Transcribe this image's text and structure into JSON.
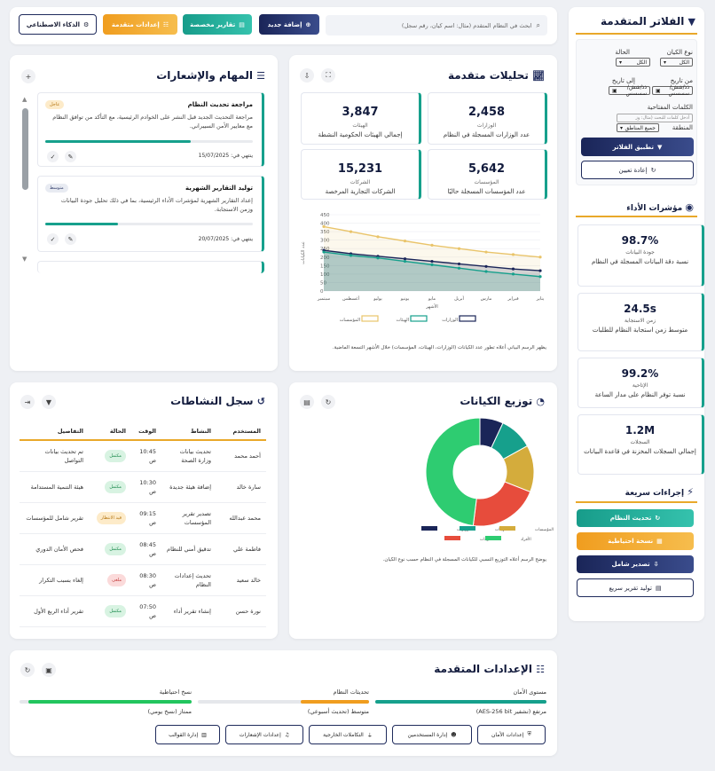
{
  "toolbar": {
    "ai_label": "الذكاء الاصطناعي",
    "advanced_settings_label": "إعدادات متقدمة",
    "custom_reports_label": "تقارير مخصصة",
    "add_new_label": "إضافة جديد",
    "search_placeholder": "ابحث في النظام المتقدم (مثال: اسم كيان، رقم سجل)"
  },
  "filters": {
    "title": "الفلاتر المتقدمة",
    "entity_type_label": "نوع الكيان",
    "entity_type_value": "الكل",
    "status_label": "الحالة",
    "status_value": "الكل",
    "from_date_label": "من تاريخ",
    "to_date_label": "إلى تاريخ",
    "date_placeholder": "ذذ/شش/سسسس",
    "keywords_label": "الكلمات المفتاحية",
    "keywords_placeholder": "أدخل كلمات للبحث (مثال: وز",
    "region_label": "المنطقة",
    "region_value": "جميع المناطق",
    "apply_label": "تطبيق الفلاتر",
    "reset_label": "إعادة تعيين"
  },
  "performance": {
    "title": "مؤشرات الأداء",
    "items": [
      {
        "value": "98.7%",
        "label": "جودة البيانات",
        "desc": "نسبة دقة البيانات المسجلة في النظام"
      },
      {
        "value": "24.5s",
        "label": "زمن الاستجابة",
        "desc": "متوسط زمن استجابة النظام للطلبات"
      },
      {
        "value": "99.2%",
        "label": "الإتاحية",
        "desc": "نسبة توفر النظام على مدار الساعة"
      },
      {
        "value": "1.2M",
        "label": "السجلات",
        "desc": "إجمالي السجلات المخزنة في قاعدة البيانات"
      }
    ]
  },
  "quick_actions": {
    "title": "إجراءات سريعة",
    "update_system": "تحديث النظام",
    "backup": "نسخة احتياطية",
    "export_all": "تصدير شامل",
    "quick_report": "توليد تقرير سريع"
  },
  "analytics": {
    "title": "تحليلات متقدمة",
    "kpis": [
      {
        "value": "2,458",
        "label": "الوزارات",
        "desc": "عدد الوزارات المسجلة في النظام"
      },
      {
        "value": "3,847",
        "label": "الهيئات",
        "desc": "إجمالي الهيئات الحكومية النشطة"
      },
      {
        "value": "5,642",
        "label": "المؤسسات",
        "desc": "عدد المؤسسات المسجلة حاليًا"
      },
      {
        "value": "15,231",
        "label": "الشركات",
        "desc": "الشركات التجارية المرخصة"
      }
    ],
    "caption": "يظهر الرسم البياني أعلاه تطور عدد الكيانات (الوزارات، الهيئات، المؤسسات) خلال الأشهر التسعة الماضية."
  },
  "tasks": {
    "title": "المهام والإشعارات",
    "items": [
      {
        "title": "مراجعة تحديث النظام",
        "badge": "عاجل",
        "desc": "مراجعة التحديث الجديد قبل النشر على الخوادم الرئيسية، مع التأكد من توافق النظام مع معايير الأمن السيبراني.",
        "due": "ينتهي في: 15/07/2025",
        "progress": 0.7
      },
      {
        "title": "توليد التقارير الشهرية",
        "badge": "متوسط",
        "desc": "إعداد التقارير الشهرية لمؤشرات الأداء الرئيسية، بما في ذلك تحليل جودة البيانات وزمن الاستجابة.",
        "due": "ينتهي في: 20/07/2025",
        "progress": 0.35
      }
    ]
  },
  "distribution": {
    "title": "توزيع الكيانات",
    "caption": "يوضح الرسم أعلاه التوزيع النسبي للكيانات المسجلة في النظام حسب نوع الكيان."
  },
  "activity": {
    "title": "سجل النشاطات",
    "columns": [
      "المستخدم",
      "النشاط",
      "الوقت",
      "الحالة",
      "التفاصيل"
    ],
    "rows": [
      {
        "user": "أحمد محمد",
        "activity": "تحديث بيانات وزارة الصحة",
        "time": "10:45 ص",
        "status": "مكتمل",
        "status_type": "g",
        "details": "تم تحديث بيانات التواصل"
      },
      {
        "user": "سارة خالد",
        "activity": "إضافة هيئة جديدة",
        "time": "10:30 ص",
        "status": "مكتمل",
        "status_type": "g",
        "details": "هيئة التنمية المستدامة"
      },
      {
        "user": "محمد عبدالله",
        "activity": "تصدير تقرير المؤسسات",
        "time": "09:15 ص",
        "status": "قيد الانتظار",
        "status_type": "o",
        "details": "تقرير شامل للمؤسسات"
      },
      {
        "user": "فاطمة علي",
        "activity": "تدقيق أمني للنظام",
        "time": "08:45 ص",
        "status": "مكتمل",
        "status_type": "g",
        "details": "فحص الأمان الدوري"
      },
      {
        "user": "خالد سعيد",
        "activity": "تحديث إعدادات النظام",
        "time": "08:30 ص",
        "status": "ملغى",
        "status_type": "r",
        "details": "إلغاء بسبب التكرار"
      },
      {
        "user": "نورة حسن",
        "activity": "إنشاء تقرير أداء",
        "time": "07:50 ص",
        "status": "مكتمل",
        "status_type": "g",
        "details": "تقرير أداء الربع الأول"
      }
    ]
  },
  "settings": {
    "title": "الإعدادات المتقدمة",
    "items": [
      {
        "label": "مستوى الأمان",
        "value": "مرتفع (تشفير AES-256 bit)",
        "level": 1.0,
        "color": "#16a08c"
      },
      {
        "label": "تحديثات النظام",
        "value": "متوسط (تحديث أسبوعي)",
        "level": 0.4,
        "color": "#f09d1f"
      },
      {
        "label": "نسخ احتياطية",
        "value": "ممتاز (نسخ يومي)",
        "level": 0.95,
        "color": "#22c55e"
      }
    ],
    "buttons": [
      "إعدادات الأمان",
      "إدارة المستخدمين",
      "التكاملات الخارجية",
      "إعدادات الإشعارات",
      "إدارة القوالب"
    ]
  },
  "chart_data": [
    {
      "type": "line",
      "title": "",
      "xlabel": "الأشهر",
      "ylabel": "عدد الكيانات",
      "x": [
        "يناير",
        "فبراير",
        "مارس",
        "أبريل",
        "مايو",
        "يونيو",
        "يوليو",
        "أغسطس",
        "سبتمبر"
      ],
      "ylim": [
        0,
        450
      ],
      "yticks": [
        0,
        50,
        100,
        150,
        200,
        250,
        300,
        350,
        400,
        450
      ],
      "series": [
        {
          "name": "الوزارات",
          "color": "#1a2558",
          "values": [
            120,
            130,
            145,
            160,
            175,
            190,
            205,
            220,
            240
          ]
        },
        {
          "name": "الهيئات",
          "color": "#16a08c",
          "values": [
            85,
            100,
            115,
            135,
            155,
            175,
            195,
            210,
            230
          ]
        },
        {
          "name": "المؤسسات",
          "color": "#e9c46a",
          "values": [
            200,
            215,
            230,
            250,
            270,
            295,
            320,
            350,
            380
          ]
        }
      ],
      "legend": "bottom"
    },
    {
      "type": "pie",
      "title": "",
      "legend": "bottom",
      "slices": [
        {
          "name": "الوزارات",
          "value": 7,
          "color": "#1a2558"
        },
        {
          "name": "الهيئات",
          "value": 10,
          "color": "#16a08c"
        },
        {
          "name": "المؤسسات",
          "value": 14,
          "color": "#d4ac3c"
        },
        {
          "name": "الشركات",
          "value": 21,
          "color": "#e74c3c"
        },
        {
          "name": "الأفراد",
          "value": 48,
          "color": "#2ecc71"
        }
      ]
    }
  ]
}
